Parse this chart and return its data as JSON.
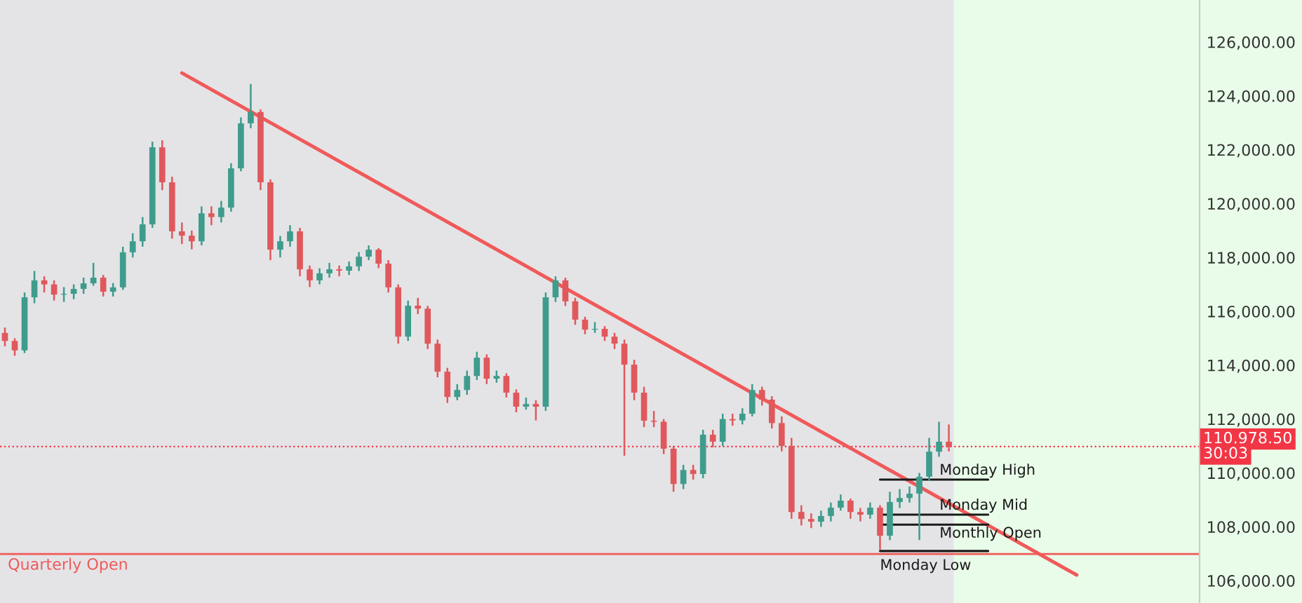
{
  "chart_data": {
    "type": "candlestick",
    "categories": [
      null,
      null,
      null,
      null,
      null,
      null,
      null,
      null,
      null,
      null,
      null,
      null,
      null,
      null,
      null,
      null,
      null,
      null,
      null,
      null,
      null,
      null,
      null,
      null,
      null,
      null,
      null,
      null,
      null,
      null,
      null,
      null,
      null,
      null,
      null,
      null,
      null,
      null,
      null,
      null,
      null,
      null,
      null,
      null,
      null,
      null,
      null,
      null,
      null,
      null,
      null,
      null,
      null,
      null,
      null,
      null,
      null,
      null,
      null,
      null,
      null,
      null,
      null,
      null,
      null,
      null,
      null,
      null,
      null,
      null,
      null,
      null,
      null,
      null,
      null,
      null,
      null,
      null,
      null,
      null,
      null,
      null,
      null,
      null,
      null,
      null,
      null,
      null,
      null,
      null,
      null,
      null,
      null,
      null,
      null,
      null,
      null,
      null,
      null,
      null,
      null,
      null,
      null,
      null,
      null,
      null,
      null,
      null,
      null,
      null,
      null,
      null,
      null,
      null,
      null,
      null,
      null,
      null,
      null,
      null,
      null,
      null
    ],
    "ohlc": [
      [
        115200,
        115400,
        114700,
        114900
      ],
      [
        114900,
        115000,
        114350,
        114550
      ],
      [
        114550,
        116700,
        114450,
        116520
      ],
      [
        116520,
        117500,
        116300,
        117150
      ],
      [
        117150,
        117300,
        116700,
        117000
      ],
      [
        117000,
        117150,
        116400,
        116620
      ],
      [
        116620,
        116900,
        116350,
        116650
      ],
      [
        116650,
        117000,
        116450,
        116830
      ],
      [
        116830,
        117250,
        116650,
        117040
      ],
      [
        117040,
        117800,
        116950,
        117250
      ],
      [
        117250,
        117350,
        116550,
        116730
      ],
      [
        116730,
        117050,
        116550,
        116890
      ],
      [
        116890,
        118400,
        116800,
        118190
      ],
      [
        118190,
        118900,
        118000,
        118600
      ],
      [
        118600,
        119500,
        118400,
        119230
      ],
      [
        119230,
        122300,
        119100,
        122090
      ],
      [
        122090,
        122350,
        120500,
        120790
      ],
      [
        120790,
        121000,
        118700,
        118970
      ],
      [
        118970,
        119300,
        118500,
        118810
      ],
      [
        118810,
        119000,
        118300,
        118600
      ],
      [
        118600,
        119900,
        118450,
        119640
      ],
      [
        119640,
        119900,
        119200,
        119500
      ],
      [
        119500,
        120100,
        119300,
        119850
      ],
      [
        119850,
        121500,
        119700,
        121310
      ],
      [
        121310,
        123200,
        121200,
        122980
      ],
      [
        122980,
        124440,
        122800,
        123400
      ],
      [
        123400,
        123500,
        120500,
        120790
      ],
      [
        120790,
        120900,
        117900,
        118290
      ],
      [
        118290,
        118800,
        118000,
        118600
      ],
      [
        118600,
        119200,
        118400,
        118970
      ],
      [
        118970,
        119100,
        117300,
        117560
      ],
      [
        117560,
        117700,
        116900,
        117150
      ],
      [
        117150,
        117600,
        117000,
        117410
      ],
      [
        117410,
        117800,
        117250,
        117560
      ],
      [
        117560,
        117700,
        117300,
        117510
      ],
      [
        117510,
        117850,
        117350,
        117670
      ],
      [
        117670,
        118200,
        117500,
        118030
      ],
      [
        118030,
        118450,
        117900,
        118290
      ],
      [
        118290,
        118350,
        117600,
        117770
      ],
      [
        117770,
        117900,
        116700,
        116890
      ],
      [
        116890,
        117000,
        114800,
        115060
      ],
      [
        115060,
        116400,
        114900,
        116210
      ],
      [
        116210,
        116500,
        115900,
        116100
      ],
      [
        116100,
        116200,
        114600,
        114800
      ],
      [
        114800,
        114950,
        113550,
        113760
      ],
      [
        113760,
        113900,
        112600,
        112820
      ],
      [
        112820,
        113300,
        112700,
        113080
      ],
      [
        113080,
        113800,
        112900,
        113600
      ],
      [
        113600,
        114500,
        113450,
        114280
      ],
      [
        114280,
        114400,
        113300,
        113500
      ],
      [
        113500,
        113800,
        113350,
        113600
      ],
      [
        113600,
        113700,
        112800,
        112980
      ],
      [
        112980,
        113100,
        112250,
        112460
      ],
      [
        112460,
        112800,
        112350,
        112560
      ],
      [
        112560,
        112700,
        111950,
        112460
      ],
      [
        112460,
        116700,
        112300,
        116520
      ],
      [
        116520,
        117300,
        116350,
        117150
      ],
      [
        117150,
        117250,
        116200,
        116370
      ],
      [
        116370,
        116500,
        115500,
        115690
      ],
      [
        115690,
        115800,
        115150,
        115320
      ],
      [
        115320,
        115600,
        115200,
        115350
      ],
      [
        115350,
        115450,
        114900,
        115060
      ],
      [
        115060,
        115200,
        114600,
        114800
      ],
      [
        114800,
        114950,
        110640,
        114020
      ],
      [
        114020,
        114200,
        112700,
        112980
      ],
      [
        112980,
        113200,
        111700,
        111940
      ],
      [
        111940,
        112300,
        111700,
        111900
      ],
      [
        111900,
        112000,
        110700,
        110900
      ],
      [
        110900,
        111000,
        109300,
        109590
      ],
      [
        109590,
        110300,
        109400,
        110110
      ],
      [
        110110,
        110300,
        109750,
        109960
      ],
      [
        109960,
        111600,
        109800,
        111420
      ],
      [
        111420,
        111600,
        110950,
        111160
      ],
      [
        111160,
        112200,
        111000,
        112000
      ],
      [
        112000,
        112200,
        111750,
        111950
      ],
      [
        111950,
        112400,
        111800,
        112200
      ],
      [
        112200,
        113300,
        112100,
        113080
      ],
      [
        113080,
        113200,
        112500,
        112720
      ],
      [
        112720,
        112850,
        111650,
        111850
      ],
      [
        111850,
        112100,
        110800,
        111000
      ],
      [
        111000,
        111300,
        108300,
        108550
      ],
      [
        108550,
        108800,
        108050,
        108290
      ],
      [
        108290,
        108500,
        107950,
        108190
      ],
      [
        108190,
        108600,
        108000,
        108400
      ],
      [
        108400,
        108900,
        108200,
        108710
      ],
      [
        108710,
        109200,
        108600,
        108970
      ],
      [
        108970,
        109050,
        108300,
        108550
      ],
      [
        108550,
        108700,
        108200,
        108450
      ],
      [
        108450,
        108900,
        108300,
        108710
      ],
      [
        108710,
        108800,
        107150,
        107670
      ],
      [
        107670,
        109300,
        107500,
        108920
      ],
      [
        108920,
        109400,
        108700,
        109070
      ],
      [
        109070,
        109500,
        108900,
        109230
      ],
      [
        109230,
        110000,
        107510,
        109860
      ],
      [
        109860,
        111300,
        109700,
        110790
      ],
      [
        110790,
        111900,
        110600,
        111160
      ],
      [
        111160,
        111800,
        110800,
        110980
      ],
      null,
      null,
      null,
      null,
      null,
      null,
      null,
      null,
      null,
      null,
      null,
      null,
      null,
      null,
      null,
      null,
      null,
      null,
      null,
      null,
      null,
      null,
      null,
      null,
      null
    ],
    "series": [
      {
        "type": "line",
        "color": "#f05a5a",
        "values": [
          null,
          null,
          null,
          null,
          null,
          null,
          null,
          null,
          null,
          null,
          null,
          null,
          null,
          null,
          null,
          null,
          null,
          null,
          124850,
          null,
          null,
          null,
          null,
          null,
          null,
          null,
          null,
          null,
          null,
          null,
          null,
          null,
          null,
          null,
          null,
          null,
          null,
          null,
          null,
          null,
          null,
          null,
          null,
          null,
          null,
          null,
          null,
          null,
          null,
          null,
          null,
          null,
          null,
          null,
          null,
          null,
          null,
          null,
          null,
          null,
          null,
          null,
          null,
          null,
          null,
          null,
          null,
          null,
          null,
          null,
          null,
          null,
          null,
          null,
          null,
          null,
          null,
          null,
          null,
          null,
          null,
          null,
          null,
          null,
          null,
          null,
          null,
          null,
          null,
          null,
          null,
          null,
          null,
          null,
          null,
          null,
          null,
          null,
          null,
          null,
          null,
          null,
          null,
          null,
          null,
          null,
          null,
          null,
          null,
          106210,
          null,
          null,
          null,
          null,
          null,
          null,
          null,
          null,
          null,
          null,
          null,
          null
        ]
      },
      {
        "type": "line",
        "name": "Monday High",
        "color": "#1a1a1a",
        "values": [
          null,
          null,
          null,
          null,
          null,
          null,
          null,
          null,
          null,
          null,
          null,
          null,
          null,
          null,
          null,
          null,
          null,
          null,
          null,
          null,
          null,
          null,
          null,
          null,
          null,
          null,
          null,
          null,
          null,
          null,
          null,
          null,
          null,
          null,
          null,
          null,
          null,
          null,
          null,
          null,
          null,
          null,
          null,
          null,
          null,
          null,
          null,
          null,
          null,
          null,
          null,
          null,
          null,
          null,
          null,
          null,
          null,
          null,
          null,
          null,
          null,
          null,
          null,
          null,
          null,
          null,
          null,
          null,
          null,
          null,
          null,
          null,
          null,
          null,
          null,
          null,
          null,
          null,
          null,
          null,
          null,
          null,
          null,
          null,
          null,
          null,
          null,
          null,
          null,
          109750,
          109750,
          109750,
          109750,
          109750,
          109750,
          109750,
          109750,
          109750,
          109750,
          109750,
          109750,
          null,
          null,
          null,
          null,
          null,
          null,
          null,
          null,
          null,
          null,
          null,
          null,
          null,
          null,
          null,
          null,
          null,
          null,
          null,
          null,
          null
        ]
      },
      {
        "type": "line",
        "name": "Monday Mid",
        "color": "#1a1a1a",
        "values": [
          null,
          null,
          null,
          null,
          null,
          null,
          null,
          null,
          null,
          null,
          null,
          null,
          null,
          null,
          null,
          null,
          null,
          null,
          null,
          null,
          null,
          null,
          null,
          null,
          null,
          null,
          null,
          null,
          null,
          null,
          null,
          null,
          null,
          null,
          null,
          null,
          null,
          null,
          null,
          null,
          null,
          null,
          null,
          null,
          null,
          null,
          null,
          null,
          null,
          null,
          null,
          null,
          null,
          null,
          null,
          null,
          null,
          null,
          null,
          null,
          null,
          null,
          null,
          null,
          null,
          null,
          null,
          null,
          null,
          null,
          null,
          null,
          null,
          null,
          null,
          null,
          null,
          null,
          null,
          null,
          null,
          null,
          null,
          null,
          null,
          null,
          null,
          null,
          null,
          108450,
          108450,
          108450,
          108450,
          108450,
          108450,
          108450,
          108450,
          108450,
          108450,
          108450,
          108450,
          null,
          null,
          null,
          null,
          null,
          null,
          null,
          null,
          null,
          null,
          null,
          null,
          null,
          null,
          null,
          null,
          null,
          null,
          null,
          null,
          null
        ]
      },
      {
        "type": "line",
        "name": "Monthly Open",
        "color": "#1a1a1a",
        "values": [
          null,
          null,
          null,
          null,
          null,
          null,
          null,
          null,
          null,
          null,
          null,
          null,
          null,
          null,
          null,
          null,
          null,
          null,
          null,
          null,
          null,
          null,
          null,
          null,
          null,
          null,
          null,
          null,
          null,
          null,
          null,
          null,
          null,
          null,
          null,
          null,
          null,
          null,
          null,
          null,
          null,
          null,
          null,
          null,
          null,
          null,
          null,
          null,
          null,
          null,
          null,
          null,
          null,
          null,
          null,
          null,
          null,
          null,
          null,
          null,
          null,
          null,
          null,
          null,
          null,
          null,
          null,
          null,
          null,
          null,
          null,
          null,
          null,
          null,
          null,
          null,
          null,
          null,
          null,
          null,
          null,
          null,
          null,
          null,
          null,
          null,
          null,
          null,
          null,
          108080,
          108080,
          108080,
          108080,
          108080,
          108080,
          108080,
          108080,
          108080,
          108080,
          108080,
          108080,
          null,
          null,
          null,
          null,
          null,
          null,
          null,
          null,
          null,
          null,
          null,
          null,
          null,
          null,
          null,
          null,
          null,
          null,
          null,
          null,
          null
        ]
      },
      {
        "type": "line",
        "name": "Monday Low",
        "color": "#1a1a1a",
        "values": [
          null,
          null,
          null,
          null,
          null,
          null,
          null,
          null,
          null,
          null,
          null,
          null,
          null,
          null,
          null,
          null,
          null,
          null,
          null,
          null,
          null,
          null,
          null,
          null,
          null,
          null,
          null,
          null,
          null,
          null,
          null,
          null,
          null,
          null,
          null,
          null,
          null,
          null,
          null,
          null,
          null,
          null,
          null,
          null,
          null,
          null,
          null,
          null,
          null,
          null,
          null,
          null,
          null,
          null,
          null,
          null,
          null,
          null,
          null,
          null,
          null,
          null,
          null,
          null,
          null,
          null,
          null,
          null,
          null,
          null,
          null,
          null,
          null,
          null,
          null,
          null,
          null,
          null,
          null,
          null,
          null,
          null,
          null,
          null,
          null,
          null,
          null,
          null,
          null,
          107100,
          107100,
          107100,
          107100,
          107100,
          107100,
          107100,
          107100,
          107100,
          107100,
          107100,
          107100,
          null,
          null,
          null,
          null,
          null,
          null,
          null,
          null,
          null,
          null,
          null,
          null,
          null,
          null,
          null,
          null,
          null,
          null,
          null,
          null,
          null
        ]
      }
    ],
    "ref_lines": [
      {
        "axis": "y",
        "value": 106990,
        "label": "Quarterly Open",
        "color": "#f05a5a",
        "line_style": "solid"
      },
      {
        "axis": "y",
        "value": 110978.5,
        "label": "110,978.50",
        "color": "#f23645",
        "line_style": "dotted"
      }
    ],
    "annotations": [
      "30:03"
    ],
    "ylim": [
      105170,
      127560
    ],
    "yticks": [
      {
        "value": 106000,
        "label": "106,000.00"
      },
      {
        "value": 108000,
        "label": "108,000.00"
      },
      {
        "value": 110000,
        "label": "110,000.00"
      },
      {
        "value": 112000,
        "label": "112,000.00"
      },
      {
        "value": 114000,
        "label": "114,000.00"
      },
      {
        "value": 116000,
        "label": "116,000.00"
      },
      {
        "value": 118000,
        "label": "118,000.00"
      },
      {
        "value": 120000,
        "label": "120,000.00"
      },
      {
        "value": 122000,
        "label": "122,000.00"
      },
      {
        "value": 124000,
        "label": "124,000.00"
      },
      {
        "value": 126000,
        "label": "126,000.00"
      }
    ],
    "tick_labels": "y",
    "grid": false,
    "legend": false
  }
}
